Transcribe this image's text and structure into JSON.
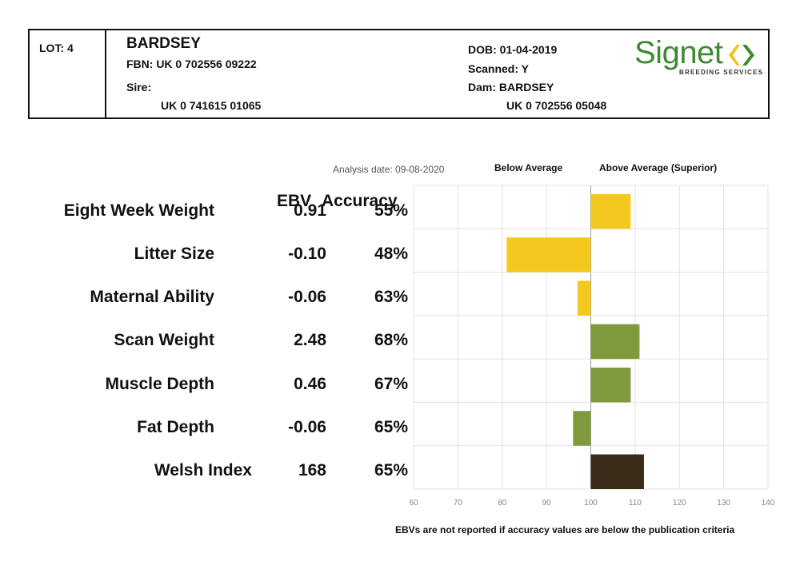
{
  "header": {
    "lot": "LOT: 4",
    "name": "BARDSEY",
    "fbn": "FBN: UK 0 702556 09222",
    "sire_label": "Sire:",
    "sire_id": "UK 0 741615 01065",
    "dob": "DOB: 01-04-2019",
    "scanned": "Scanned: Y",
    "dam": "Dam: BARDSEY",
    "dam_id": "UK 0 702556 05048"
  },
  "logo": {
    "name": "Signet",
    "subtitle": "BREEDING SERVICES",
    "colors": [
      "#3e8a32",
      "#f0c21a"
    ]
  },
  "analysis_date": "Analysis date: 09-08-2020",
  "below_label": "Below Average",
  "above_label": "Above Average (Superior)",
  "table_header": {
    "ebv": "EBV",
    "accuracy": "Accuracy"
  },
  "footer": "EBVs are not reported if accuracy values are below the publication criteria",
  "chart_data": {
    "type": "bar",
    "orientation": "horizontal",
    "baseline": 100,
    "xlim": [
      60,
      140
    ],
    "xticks": [
      60,
      70,
      80,
      90,
      100,
      110,
      120,
      130,
      140
    ],
    "grid": true,
    "rows": [
      {
        "trait": "Eight Week Weight",
        "ebv": "0.91",
        "accuracy": "55%",
        "value": 109,
        "color": "#f4c81e"
      },
      {
        "trait": "Litter Size",
        "ebv": "-0.10",
        "accuracy": "48%",
        "value": 81,
        "color": "#f4c81e"
      },
      {
        "trait": "Maternal Ability",
        "ebv": "-0.06",
        "accuracy": "63%",
        "value": 97,
        "color": "#f4c81e"
      },
      {
        "trait": "Scan Weight",
        "ebv": "2.48",
        "accuracy": "68%",
        "value": 111,
        "color": "#7f9a3c"
      },
      {
        "trait": "Muscle Depth",
        "ebv": "0.46",
        "accuracy": "67%",
        "value": 109,
        "color": "#7f9a3c"
      },
      {
        "trait": "Fat Depth",
        "ebv": "-0.06",
        "accuracy": "65%",
        "value": 96,
        "color": "#7f9a3c"
      },
      {
        "trait": "Welsh Index",
        "ebv": "168",
        "accuracy": "65%",
        "value": 112,
        "color": "#3a2a18"
      }
    ]
  }
}
